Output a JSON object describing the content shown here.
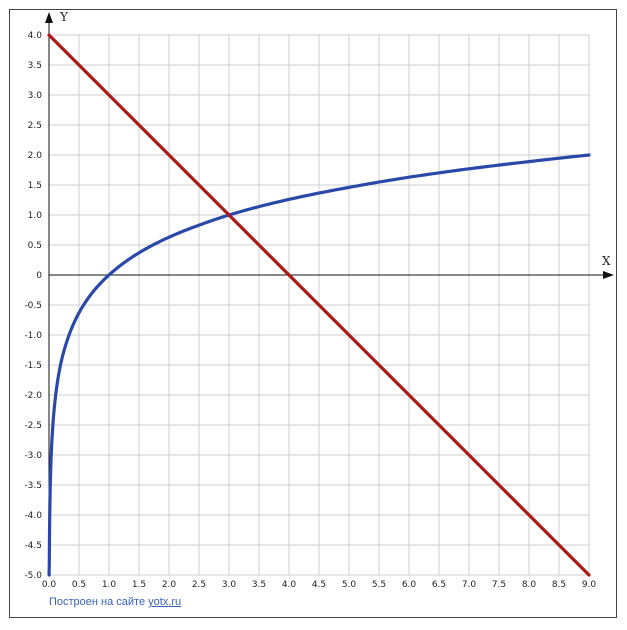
{
  "chart_data": {
    "type": "line",
    "xlabel": "X",
    "ylabel": "Y",
    "xlim": [
      0,
      9
    ],
    "ylim": [
      -5,
      4
    ],
    "grid": true,
    "x_ticks": [
      "0.0",
      "0.5",
      "1.0",
      "1.5",
      "2.0",
      "2.5",
      "3.0",
      "3.5",
      "4.0",
      "4.5",
      "5.0",
      "5.5",
      "6.0",
      "6.5",
      "7.0",
      "7.5",
      "8.0",
      "8.5",
      "9.0"
    ],
    "y_ticks": [
      "4.0",
      "3.5",
      "3.0",
      "2.5",
      "2.0",
      "1.5",
      "1.0",
      "0.5",
      "0",
      "-0.5",
      "-1.0",
      "-1.5",
      "-2.0",
      "-2.5",
      "-3.0",
      "-3.5",
      "-4.0",
      "-4.5",
      "-5.0"
    ],
    "series": [
      {
        "color": "#2a48a8",
        "x": [
          0.0015,
          0.005,
          0.01,
          0.02,
          0.05,
          0.1,
          0.2,
          0.3,
          0.5,
          0.75,
          1.0,
          1.5,
          2.0,
          2.5,
          3.0,
          3.5,
          4.0,
          5.0,
          6.0,
          7.0,
          8.0,
          9.0
        ],
        "y": [
          -5.0,
          -4.82,
          -4.19,
          -3.56,
          -2.73,
          -2.1,
          -1.46,
          -1.1,
          -0.63,
          -0.26,
          0.0,
          0.37,
          0.63,
          0.83,
          1.0,
          1.14,
          1.26,
          1.46,
          1.63,
          1.77,
          1.89,
          2.0
        ]
      },
      {
        "color": "#aa1a1a",
        "x": [
          0,
          3,
          4,
          9
        ],
        "y": [
          4,
          1,
          0,
          -5
        ]
      }
    ]
  },
  "footer": {
    "credit_text": "Построен на сайте",
    "link_text": "yotx.ru"
  }
}
